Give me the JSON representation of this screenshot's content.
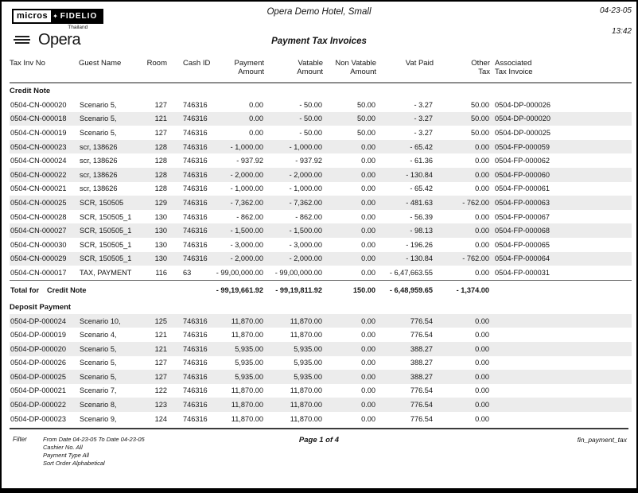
{
  "header": {
    "logo": {
      "brand_left": "micros",
      "star": "✦",
      "brand_right": "FIDELIO",
      "country": "Thailand",
      "product": "Opera"
    },
    "hotel_name": "Opera Demo Hotel, Small",
    "date": "04-23-05",
    "time": "13:42",
    "report_title": "Payment Tax Invoices"
  },
  "table": {
    "columns": [
      {
        "line1": "Tax Inv No",
        "line2": ""
      },
      {
        "line1": "Guest Name",
        "line2": ""
      },
      {
        "line1": "Room",
        "line2": ""
      },
      {
        "line1": "Cash ID",
        "line2": ""
      },
      {
        "line1": "Payment",
        "line2": "Amount"
      },
      {
        "line1": "Vatable",
        "line2": "Amount"
      },
      {
        "line1": "Non Vatable",
        "line2": "Amount"
      },
      {
        "line1": "Vat Paid",
        "line2": ""
      },
      {
        "line1": "Other",
        "line2": "Tax"
      },
      {
        "line1": "Associated",
        "line2": "Tax Invoice"
      }
    ],
    "sections": [
      {
        "name": "Credit Note",
        "rows": [
          [
            "0504-CN-000020",
            "Scenario 5,",
            "127",
            "746316",
            "0.00",
            "- 50.00",
            "50.00",
            "- 3.27",
            "50.00",
            "0504-DP-000026"
          ],
          [
            "0504-CN-000018",
            "Scenario 5,",
            "121",
            "746316",
            "0.00",
            "- 50.00",
            "50.00",
            "- 3.27",
            "50.00",
            "0504-DP-000020"
          ],
          [
            "0504-CN-000019",
            "Scenario 5,",
            "127",
            "746316",
            "0.00",
            "- 50.00",
            "50.00",
            "- 3.27",
            "50.00",
            "0504-DP-000025"
          ],
          [
            "0504-CN-000023",
            "scr, 138626",
            "128",
            "746316",
            "- 1,000.00",
            "- 1,000.00",
            "0.00",
            "- 65.42",
            "0.00",
            "0504-FP-000059"
          ],
          [
            "0504-CN-000024",
            "scr, 138626",
            "128",
            "746316",
            "- 937.92",
            "- 937.92",
            "0.00",
            "- 61.36",
            "0.00",
            "0504-FP-000062"
          ],
          [
            "0504-CN-000022",
            "scr, 138626",
            "128",
            "746316",
            "- 2,000.00",
            "- 2,000.00",
            "0.00",
            "- 130.84",
            "0.00",
            "0504-FP-000060"
          ],
          [
            "0504-CN-000021",
            "scr, 138626",
            "128",
            "746316",
            "- 1,000.00",
            "- 1,000.00",
            "0.00",
            "- 65.42",
            "0.00",
            "0504-FP-000061"
          ],
          [
            "0504-CN-000025",
            "SCR, 150505",
            "129",
            "746316",
            "- 7,362.00",
            "- 7,362.00",
            "0.00",
            "- 481.63",
            "- 762.00",
            "0504-FP-000063"
          ],
          [
            "0504-CN-000028",
            "SCR, 150505_1",
            "130",
            "746316",
            "- 862.00",
            "- 862.00",
            "0.00",
            "- 56.39",
            "0.00",
            "0504-FP-000067"
          ],
          [
            "0504-CN-000027",
            "SCR, 150505_1",
            "130",
            "746316",
            "- 1,500.00",
            "- 1,500.00",
            "0.00",
            "- 98.13",
            "0.00",
            "0504-FP-000068"
          ],
          [
            "0504-CN-000030",
            "SCR, 150505_1",
            "130",
            "746316",
            "- 3,000.00",
            "- 3,000.00",
            "0.00",
            "- 196.26",
            "0.00",
            "0504-FP-000065"
          ],
          [
            "0504-CN-000029",
            "SCR, 150505_1",
            "130",
            "746316",
            "- 2,000.00",
            "- 2,000.00",
            "0.00",
            "- 130.84",
            "- 762.00",
            "0504-FP-000064"
          ],
          [
            "0504-CN-000017",
            "TAX, PAYMENT",
            "116",
            "63",
            "- 99,00,000.00",
            "- 99,00,000.00",
            "0.00",
            "- 6,47,663.55",
            "0.00",
            "0504-FP-000031"
          ]
        ],
        "total": {
          "label": "Total for",
          "name": "Credit Note",
          "values": [
            "- 99,19,661.92",
            "- 99,19,811.92",
            "150.00",
            "- 6,48,959.65",
            "- 1,374.00"
          ]
        }
      },
      {
        "name": "Deposit Payment",
        "rows": [
          [
            "0504-DP-000024",
            "Scenario 10,",
            "125",
            "746316",
            "11,870.00",
            "11,870.00",
            "0.00",
            "776.54",
            "0.00",
            ""
          ],
          [
            "0504-DP-000019",
            "Scenario 4,",
            "121",
            "746316",
            "11,870.00",
            "11,870.00",
            "0.00",
            "776.54",
            "0.00",
            ""
          ],
          [
            "0504-DP-000020",
            "Scenario 5,",
            "121",
            "746316",
            "5,935.00",
            "5,935.00",
            "0.00",
            "388.27",
            "0.00",
            ""
          ],
          [
            "0504-DP-000026",
            "Scenario 5,",
            "127",
            "746316",
            "5,935.00",
            "5,935.00",
            "0.00",
            "388.27",
            "0.00",
            ""
          ],
          [
            "0504-DP-000025",
            "Scenario 5,",
            "127",
            "746316",
            "5,935.00",
            "5,935.00",
            "0.00",
            "388.27",
            "0.00",
            ""
          ],
          [
            "0504-DP-000021",
            "Scenario 7,",
            "122",
            "746316",
            "11,870.00",
            "11,870.00",
            "0.00",
            "776.54",
            "0.00",
            ""
          ],
          [
            "0504-DP-000022",
            "Scenario 8,",
            "123",
            "746316",
            "11,870.00",
            "11,870.00",
            "0.00",
            "776.54",
            "0.00",
            ""
          ],
          [
            "0504-DP-000023",
            "Scenario 9,",
            "124",
            "746316",
            "11,870.00",
            "11,870.00",
            "0.00",
            "776.54",
            "0.00",
            ""
          ]
        ]
      }
    ]
  },
  "footer": {
    "filter_label": "Filter",
    "filter_lines": [
      "From Date 04-23-05   To Date 04-23-05",
      "Cashier No. All",
      "Payment Type All",
      "Sort Order Alphabetical"
    ],
    "page": "Page 1 of 4",
    "report_id": "fin_payment_tax"
  },
  "colors": {
    "row_shade": "#ececec",
    "rule_gray": "#8e8e8e",
    "text": "#141414"
  }
}
